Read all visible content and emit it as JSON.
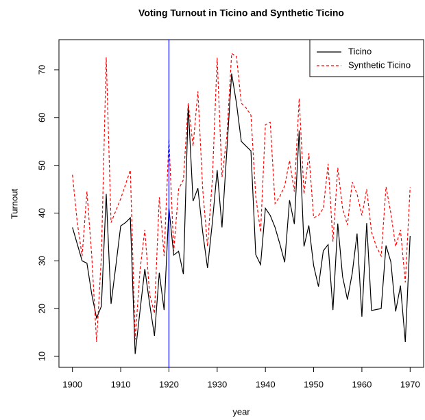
{
  "chart_data": {
    "type": "line",
    "title": "Voting Turnout in Ticino and Synthetic Ticino",
    "x_label": "year",
    "y_label": "Turnout",
    "x": [
      1900,
      1901,
      1902,
      1903,
      1904,
      1905,
      1906,
      1907,
      1908,
      1909,
      1910,
      1911,
      1912,
      1913,
      1914,
      1915,
      1916,
      1917,
      1918,
      1919,
      1920,
      1921,
      1922,
      1923,
      1924,
      1925,
      1926,
      1927,
      1928,
      1929,
      1930,
      1931,
      1932,
      1933,
      1934,
      1935,
      1936,
      1937,
      1938,
      1939,
      1940,
      1941,
      1942,
      1943,
      1944,
      1945,
      1946,
      1947,
      1948,
      1949,
      1950,
      1951,
      1952,
      1953,
      1954,
      1955,
      1956,
      1957,
      1958,
      1959,
      1960,
      1961,
      1962,
      1963,
      1964,
      1965,
      1966,
      1967,
      1968,
      1969,
      1970
    ],
    "series": [
      {
        "name": "Ticino",
        "color": "#000000",
        "dashed": false,
        "values": [
          37,
          33.5,
          30,
          29.5,
          23,
          18,
          20.5,
          44,
          21,
          29,
          37.3,
          38,
          39,
          10.5,
          19.5,
          28.3,
          21,
          14.3,
          27.5,
          19.7,
          41,
          31.2,
          32,
          27.2,
          62.5,
          42.5,
          45.2,
          36,
          28.5,
          38,
          49,
          37,
          53,
          69.2,
          63,
          55,
          54,
          53,
          31.3,
          29.2,
          41,
          39.5,
          37,
          33.5,
          29.7,
          42.7,
          37.7,
          57.3,
          33,
          37.4,
          29,
          24.6,
          32.1,
          33.4,
          19.7,
          37.8,
          26.7,
          21.9,
          27.4,
          35.7,
          18.3,
          37.9,
          19.6,
          19.8,
          20,
          33.2,
          29.8,
          19.4,
          24.8,
          13,
          35.2
        ]
      },
      {
        "name": "Synthetic Ticino",
        "color": "#ff0000",
        "dashed": true,
        "values": [
          48,
          38,
          31,
          44.5,
          31,
          13,
          31,
          72.6,
          38,
          40.5,
          43,
          46,
          49,
          13.5,
          28,
          36.5,
          23,
          19,
          43.3,
          31,
          55.5,
          32,
          45,
          47,
          63,
          54,
          65.5,
          45,
          33,
          47,
          72.5,
          47.5,
          56,
          73.4,
          72.8,
          63,
          62,
          60.5,
          43.5,
          36,
          58.5,
          59,
          42,
          43.5,
          45.7,
          51,
          44.5,
          64,
          44,
          52.5,
          39,
          39.5,
          41,
          50.3,
          34,
          49.5,
          41,
          37.5,
          46.5,
          44,
          39.5,
          45,
          36,
          33,
          31,
          45.5,
          40,
          33,
          36.5,
          25.5,
          45.4
        ]
      }
    ],
    "vline": 1920,
    "vline_color": "#0000ff",
    "xlim": [
      1897.2,
      1972.8
    ],
    "xticks": [
      1900,
      1910,
      1920,
      1930,
      1940,
      1950,
      1960,
      1970
    ],
    "ylim": [
      7.7,
      76.3
    ],
    "yticks": [
      10,
      20,
      30,
      40,
      50,
      60,
      70
    ],
    "legend": "top-right"
  }
}
